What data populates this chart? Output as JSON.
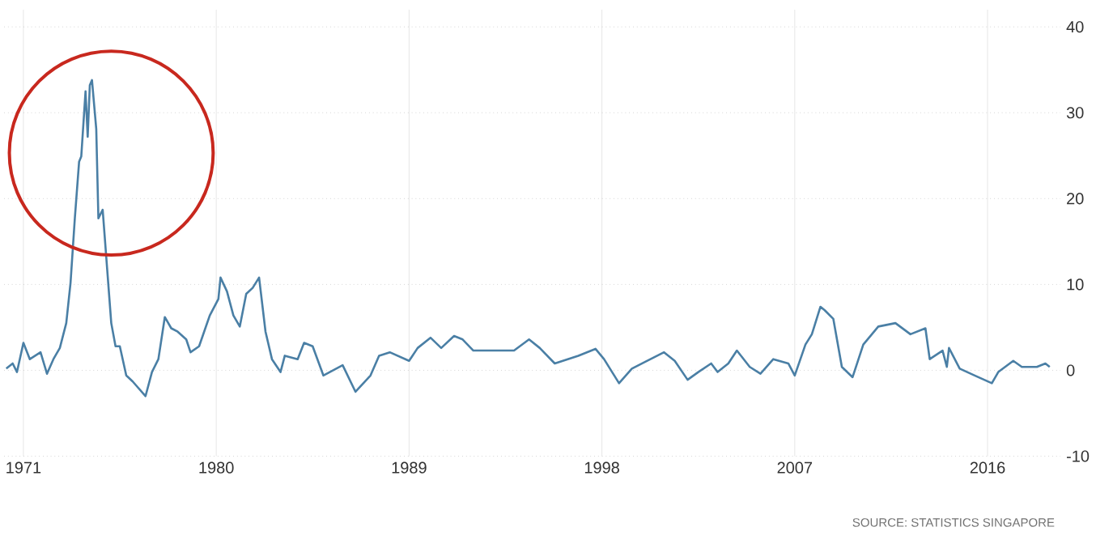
{
  "chart_data": {
    "type": "line",
    "x": [
      1970.2,
      1970.5,
      1970.7,
      1971.0,
      1971.3,
      1971.8,
      1972.1,
      1972.4,
      1972.7,
      1973.0,
      1973.2,
      1973.4,
      1973.6,
      1973.7,
      1973.9,
      1974.0,
      1974.1,
      1974.2,
      1974.4,
      1974.5,
      1974.7,
      1974.9,
      1975.1,
      1975.3,
      1975.5,
      1975.8,
      1976.1,
      1976.7,
      1977.0,
      1977.3,
      1977.6,
      1977.9,
      1978.2,
      1978.6,
      1978.8,
      1979.2,
      1979.7,
      1980.1,
      1980.2,
      1980.5,
      1980.8,
      1981.1,
      1981.4,
      1981.7,
      1982.0,
      1982.3,
      1982.6,
      1983.0,
      1983.2,
      1983.8,
      1984.1,
      1984.5,
      1985.0,
      1985.9,
      1986.5,
      1987.2,
      1987.6,
      1988.1,
      1989.0,
      1989.4,
      1990.0,
      1990.5,
      1991.1,
      1991.5,
      1992.0,
      1993.1,
      1993.9,
      1994.6,
      1995.1,
      1995.8,
      1996.9,
      1997.7,
      1998.1,
      1998.8,
      1999.4,
      2000.1,
      2000.9,
      2001.4,
      2002.0,
      2002.5,
      2003.1,
      2003.4,
      2003.9,
      2004.3,
      2004.9,
      2005.4,
      2006.0,
      2006.7,
      2007.0,
      2007.5,
      2007.8,
      2008.2,
      2008.4,
      2008.8,
      2009.2,
      2009.7,
      2010.2,
      2010.9,
      2011.7,
      2012.4,
      2013.1,
      2013.3,
      2013.9,
      2014.1,
      2014.2,
      2014.7,
      2015.4,
      2016.2,
      2016.5,
      2017.2,
      2017.6,
      2018.3,
      2018.7,
      2018.9
    ],
    "series": [
      {
        "color": "#4a7fa5",
        "values": [
          0.2,
          0.8,
          -0.2,
          3.2,
          1.3,
          2.1,
          -0.4,
          1.3,
          2.6,
          5.5,
          10.2,
          17.7,
          24.3,
          24.9,
          32.5,
          27.2,
          33.2,
          33.8,
          28.1,
          17.7,
          18.7,
          12.1,
          5.5,
          2.8,
          2.8,
          -0.6,
          -1.3,
          -3.0,
          -0.2,
          1.3,
          6.2,
          4.9,
          4.5,
          3.6,
          2.1,
          2.8,
          6.4,
          8.3,
          10.8,
          9.2,
          6.4,
          5.1,
          8.9,
          9.6,
          10.8,
          4.5,
          1.3,
          -0.2,
          1.7,
          1.3,
          3.2,
          2.8,
          -0.6,
          0.6,
          -2.5,
          -0.6,
          1.7,
          2.1,
          1.1,
          2.6,
          3.8,
          2.6,
          4.0,
          3.6,
          2.3,
          2.3,
          2.3,
          3.6,
          2.6,
          0.8,
          1.7,
          2.5,
          1.3,
          -1.5,
          0.2,
          1.1,
          2.1,
          1.1,
          -1.1,
          -0.2,
          0.8,
          -0.2,
          0.8,
          2.3,
          0.4,
          -0.4,
          1.3,
          0.8,
          -0.6,
          3.0,
          4.2,
          7.4,
          7.0,
          6.0,
          0.4,
          -0.8,
          3.0,
          5.1,
          5.5,
          4.2,
          4.9,
          1.3,
          2.3,
          0.4,
          2.6,
          0.2,
          -0.6,
          -1.5,
          -0.2,
          1.1,
          0.4,
          0.4,
          0.8,
          0.4
        ]
      }
    ],
    "xlim": [
      1970.1,
      2019.4
    ],
    "ylim": [
      -10,
      42
    ],
    "xticks": [
      1971,
      1980,
      1989,
      1998,
      2007,
      2016
    ],
    "yticks": [
      -10,
      0,
      10,
      20,
      30,
      40
    ],
    "grid": true,
    "marker": "none",
    "line_style": "solid",
    "annotations": [
      "SOURCE: STATISTICS SINGAPORE"
    ]
  }
}
